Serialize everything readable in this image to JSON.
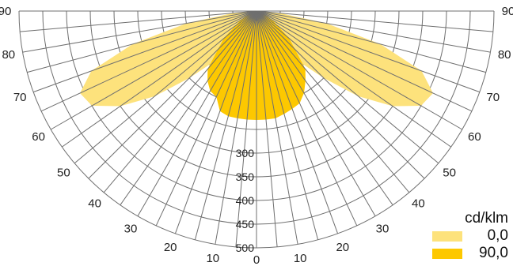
{
  "chart_data": {
    "type": "polar",
    "title": "",
    "unit_label": "cd/klm",
    "angle_tick_labels": [
      "90",
      "80",
      "70",
      "60",
      "50",
      "40",
      "30",
      "20",
      "10",
      "0"
    ],
    "radial_tick_labels": [
      "300",
      "350",
      "400",
      "450",
      "500"
    ],
    "radial_ticks": [
      300,
      350,
      400,
      450,
      500
    ],
    "radial_max": 500,
    "angle_range_deg": [
      0,
      90
    ],
    "grid": true,
    "legend_position": "bottom-right",
    "series": [
      {
        "name": "0,0",
        "color": "#fde27c",
        "angles_deg": [
          -90,
          -85,
          -80,
          -75,
          -70,
          -65,
          -60,
          -55,
          -50,
          -45,
          -40,
          -35,
          -30,
          -25,
          -20,
          -15,
          -10,
          -5,
          0,
          5,
          10,
          15,
          20,
          25,
          30,
          35,
          40,
          45,
          50,
          55,
          60,
          65,
          70,
          75,
          80,
          85,
          90
        ],
        "values": [
          0,
          50,
          150,
          270,
          370,
          410,
          400,
          350,
          280,
          200,
          140,
          80,
          35,
          30,
          60,
          70,
          80,
          85,
          90,
          85,
          80,
          70,
          60,
          30,
          35,
          80,
          140,
          200,
          280,
          350,
          400,
          410,
          370,
          270,
          150,
          50,
          0
        ]
      },
      {
        "name": "90,0",
        "color": "#fdc800",
        "angles_deg": [
          -90,
          -80,
          -70,
          -60,
          -50,
          -40,
          -35,
          -30,
          -25,
          -20,
          -15,
          -10,
          -5,
          0,
          5,
          10,
          15,
          20,
          25,
          30,
          35,
          40,
          50,
          60,
          70,
          80,
          90
        ],
        "values": [
          0,
          0,
          15,
          40,
          90,
          160,
          180,
          195,
          200,
          225,
          230,
          230,
          230,
          230,
          230,
          230,
          225,
          220,
          215,
          200,
          180,
          160,
          90,
          40,
          15,
          0,
          0
        ]
      }
    ]
  }
}
